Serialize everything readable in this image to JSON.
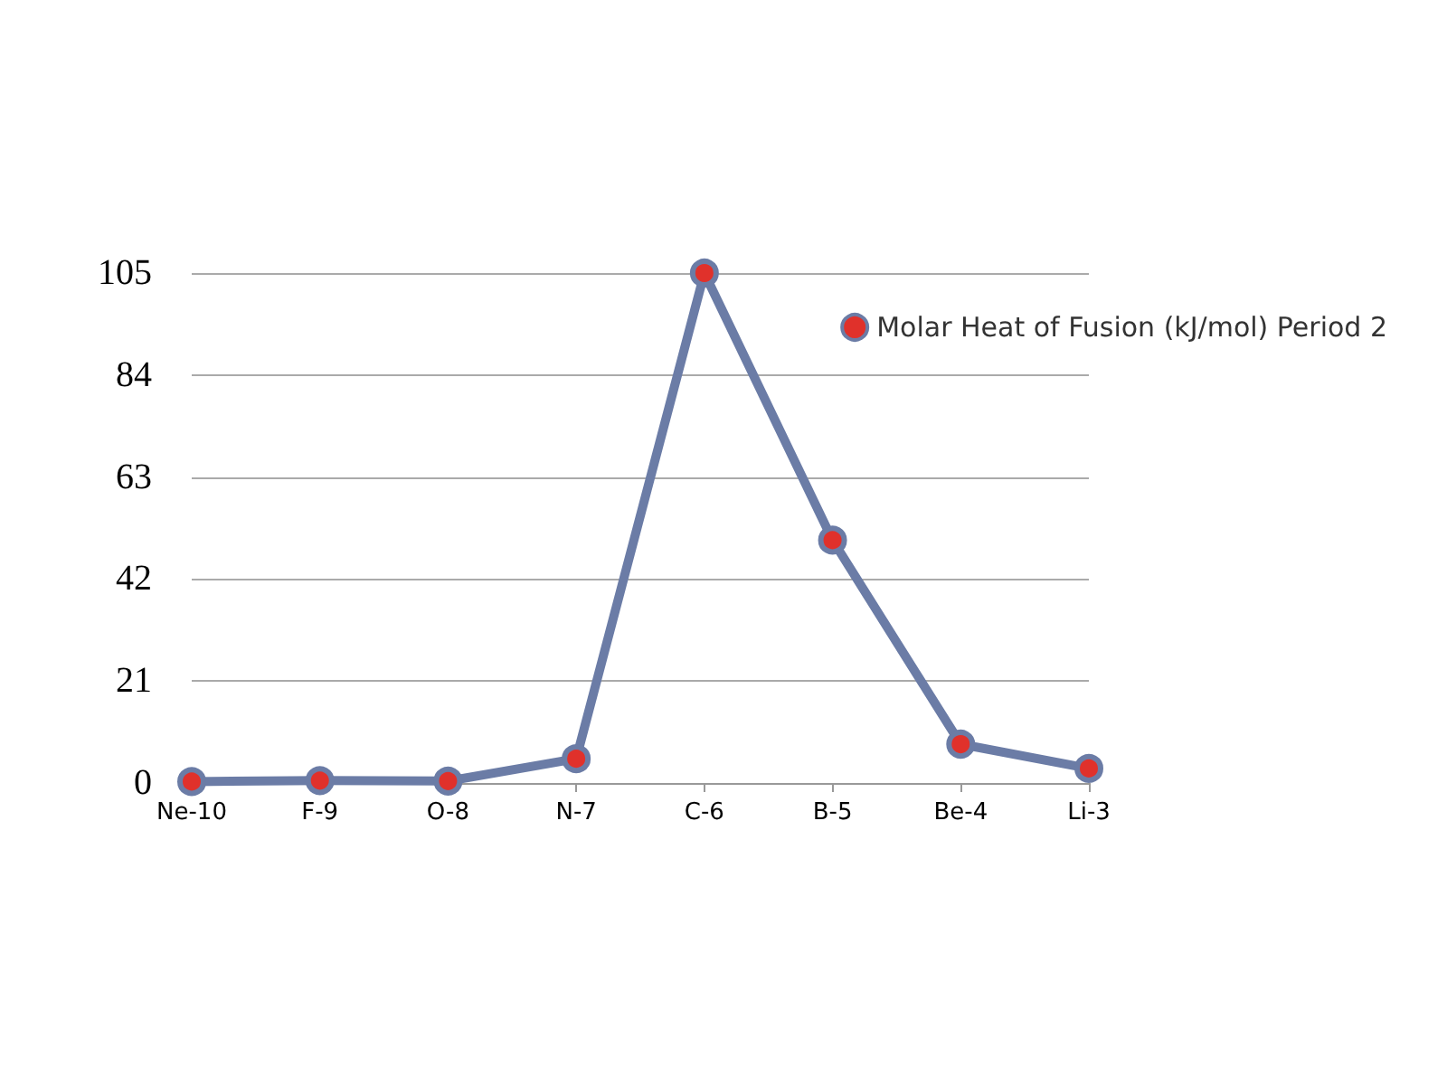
{
  "chart_data": {
    "type": "line",
    "categories": [
      "Ne-10",
      "F-9",
      "O-8",
      "N-7",
      "C-6",
      "B-5",
      "Be-4",
      "Li-3"
    ],
    "series": [
      {
        "name": "Molar Heat of Fusion (kJ/mol) Period 2",
        "color": "#6b7ca6",
        "values": [
          0.3,
          0.5,
          0.4,
          5,
          105,
          50,
          8,
          3
        ]
      }
    ],
    "ylim": [
      0,
      105
    ],
    "yticks": [
      0,
      21,
      42,
      63,
      84,
      105
    ],
    "grid": "y",
    "legend": "right",
    "marker": "circle",
    "line_style": "solid"
  }
}
